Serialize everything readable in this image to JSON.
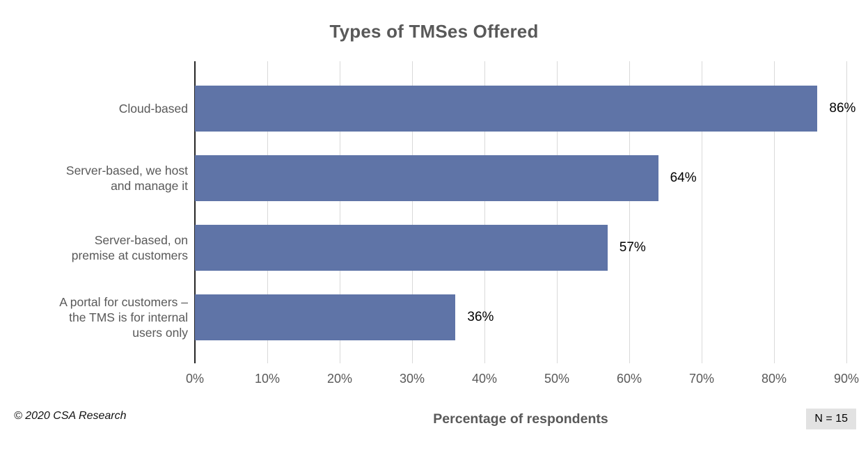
{
  "title": "Types of TMSes Offered",
  "chart_data": {
    "type": "bar",
    "orientation": "horizontal",
    "categories": [
      "Cloud-based",
      "Server-based, we host\nand manage it",
      "Server-based, on\npremise at customers",
      "A portal for customers –\nthe TMS is for internal\nusers only"
    ],
    "values": [
      86,
      64,
      57,
      36
    ],
    "value_labels": [
      "86%",
      "64%",
      "57%",
      "36%"
    ],
    "xlabel": "Percentage of respondents",
    "ylabel": "",
    "xlim": [
      0,
      90
    ],
    "x_ticks": [
      "0%",
      "10%",
      "20%",
      "30%",
      "40%",
      "50%",
      "60%",
      "70%",
      "80%",
      "90%"
    ],
    "grid": true,
    "legend": false,
    "colors": {
      "bar": "#5F74A7",
      "gridline": "#D9D9D9",
      "axis_line": "#262626",
      "title_text": "#595959",
      "label_text": "#595959",
      "value_text": "#000000"
    }
  },
  "footer": {
    "copyright": "© 2020 CSA Research",
    "sample_size": "N = 15",
    "badge_bg": "#E2E2E2"
  }
}
